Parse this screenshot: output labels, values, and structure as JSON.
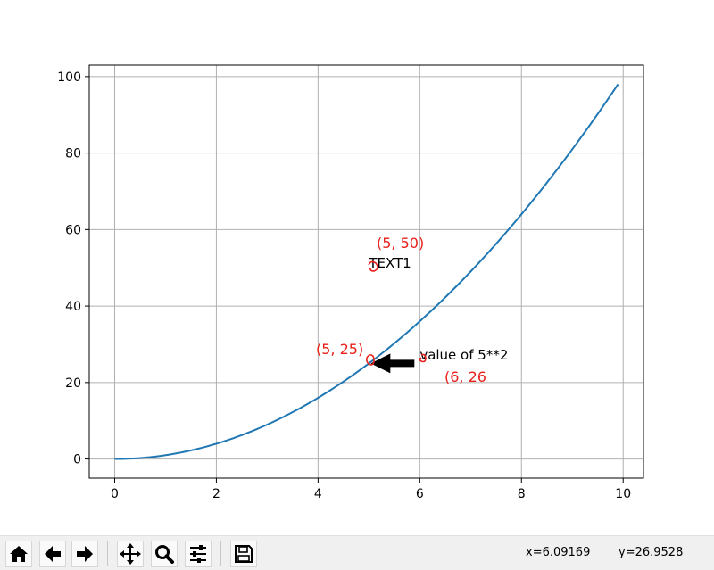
{
  "chart_data": {
    "type": "line",
    "x": [
      0,
      0.5,
      1,
      1.5,
      2,
      2.5,
      3,
      3.5,
      4,
      4.5,
      5,
      5.5,
      6,
      6.5,
      7,
      7.5,
      8,
      8.5,
      9,
      9.5,
      9.9
    ],
    "series": [
      {
        "values": [
          0,
          0.25,
          1,
          2.25,
          4,
          6.25,
          9,
          12.25,
          16,
          20.25,
          25,
          30.25,
          36,
          42.25,
          49,
          56.25,
          64,
          72.25,
          81,
          90.25,
          98.01
        ],
        "color": "#1f77b4"
      }
    ],
    "xlim": [
      -0.5,
      10.4
    ],
    "ylim": [
      -5,
      103
    ],
    "xticks": [
      "0",
      "2",
      "4",
      "6",
      "8",
      "10"
    ],
    "yticks": [
      "0",
      "20",
      "40",
      "60",
      "80",
      "100"
    ],
    "grid": true,
    "title": "",
    "xlabel": "",
    "ylabel": "",
    "annotations": [
      {
        "text": "TEXT1",
        "x": 5,
        "y": 50
      },
      {
        "text": "value of 5**2",
        "x": 6,
        "y": 26,
        "arrow_to": [
          5,
          25
        ]
      }
    ],
    "handwritten_notes": [
      {
        "text": "(5,  50)",
        "color": "#e8201a"
      },
      {
        "text": "(5,  25)",
        "color": "#e8201a"
      },
      {
        "text": "(6,  26",
        "color": "#e8201a"
      }
    ]
  },
  "toolbar": {
    "buttons": [
      {
        "name": "home-button",
        "icon": "home-icon"
      },
      {
        "name": "back-button",
        "icon": "arrow-left-icon"
      },
      {
        "name": "forward-button",
        "icon": "arrow-right-icon"
      },
      {
        "name": "pan-button",
        "icon": "move-icon"
      },
      {
        "name": "zoom-button",
        "icon": "magnifier-icon"
      },
      {
        "name": "configure-subplots-button",
        "icon": "sliders-icon"
      },
      {
        "name": "save-button",
        "icon": "floppy-disk-icon"
      }
    ]
  },
  "status": {
    "x_readout": "x=6.09169",
    "y_readout": "y=26.9528"
  }
}
